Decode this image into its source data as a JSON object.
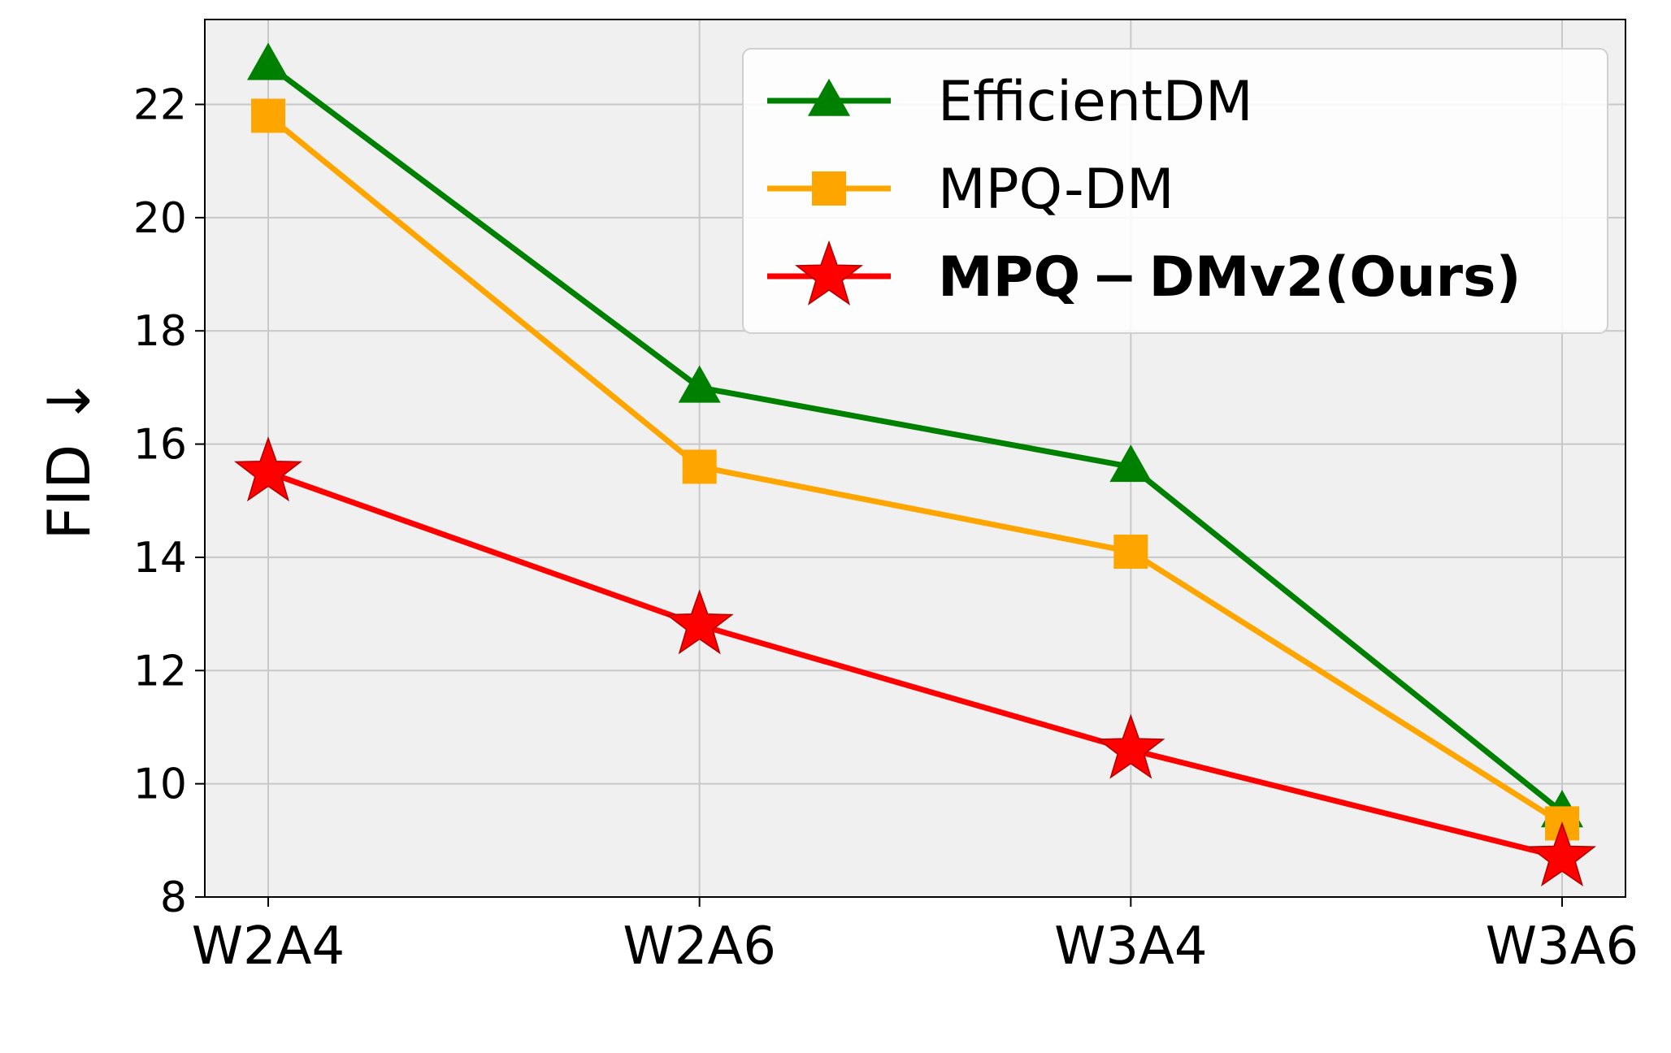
{
  "chart_data": {
    "type": "line",
    "title": "",
    "xlabel": "",
    "ylabel": "FID ↓",
    "categories": [
      "W2A4",
      "W2A6",
      "W3A4",
      "W3A6"
    ],
    "ylim": [
      8,
      23.5
    ],
    "yticks": [
      8,
      10,
      12,
      14,
      16,
      18,
      20,
      22
    ],
    "grid": true,
    "legend_position": "top-right",
    "series": [
      {
        "name": "EfficientDM",
        "values": [
          22.7,
          17.0,
          15.6,
          9.5
        ],
        "color": "#008000",
        "marker": "triangle"
      },
      {
        "name": "MPQ-DM",
        "values": [
          21.8,
          15.6,
          14.1,
          9.3
        ],
        "color": "#FFA500",
        "marker": "square"
      },
      {
        "name": "MPQ − DMv2(Ours)",
        "values": [
          15.5,
          12.8,
          10.6,
          8.7
        ],
        "color": "#FF0000",
        "marker": "star",
        "bold": true
      }
    ]
  }
}
